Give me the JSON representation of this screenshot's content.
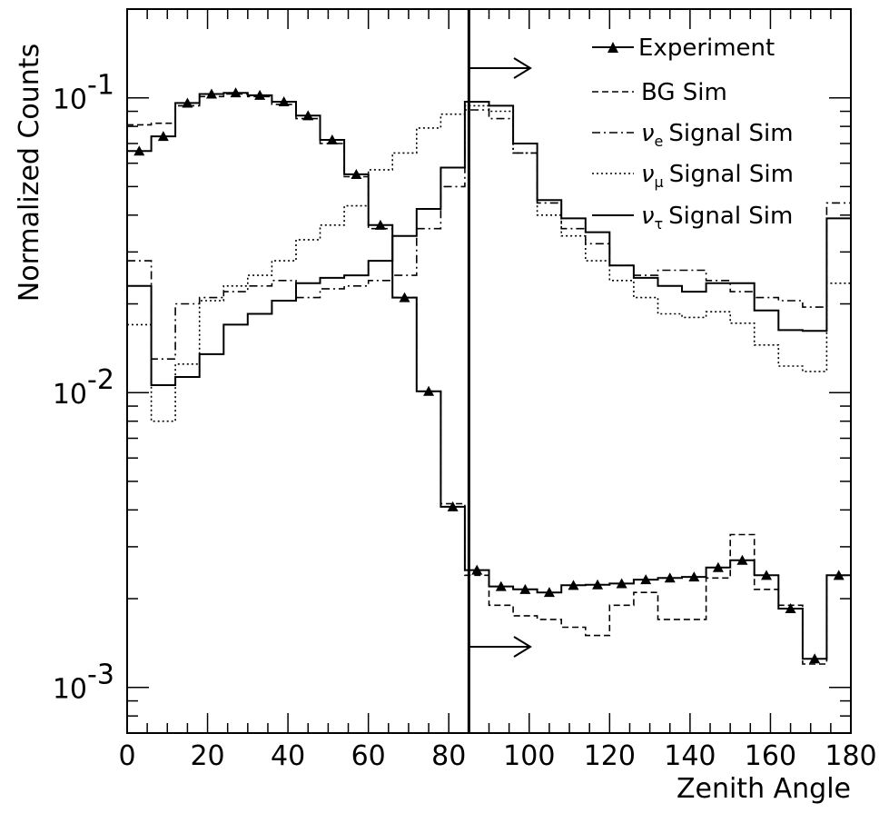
{
  "chart_data": {
    "type": "line",
    "xlabel": "Zenith Angle",
    "ylabel": "Normalized Counts",
    "xlim": [
      0,
      180
    ],
    "ylim": [
      0.0007,
      0.2
    ],
    "log_y": true,
    "x_ticks": [
      "0",
      "20",
      "40",
      "60",
      "80",
      "100",
      "120",
      "140",
      "160",
      "180"
    ],
    "y_tick_labels": [
      {
        "value": 0.1,
        "base": "10",
        "exp": "-1"
      },
      {
        "value": 0.01,
        "base": "10",
        "exp": "-2"
      },
      {
        "value": 0.001,
        "base": "10",
        "exp": "-3"
      }
    ],
    "cut_line_x": 85,
    "bin_edges": [
      0,
      6,
      12,
      18,
      24,
      30,
      36,
      42,
      48,
      54,
      60,
      66,
      72,
      78,
      84,
      90,
      96,
      102,
      108,
      114,
      120,
      126,
      132,
      138,
      144,
      150,
      156,
      162,
      168,
      174,
      180
    ],
    "legend": [
      {
        "label": "Experiment",
        "nu": ""
      },
      {
        "label": "BG Sim",
        "nu": ""
      },
      {
        "label": "Signal Sim",
        "nu": "ν",
        "sub": "e"
      },
      {
        "label": "Signal Sim",
        "nu": "ν",
        "sub": "μ"
      },
      {
        "label": "Signal Sim",
        "nu": "ν",
        "sub": "τ"
      }
    ],
    "series": [
      {
        "name": "Experiment",
        "style": "solid-triangles",
        "values": [
          0.066,
          0.074,
          0.096,
          0.103,
          0.104,
          0.102,
          0.097,
          0.087,
          0.072,
          0.055,
          0.037,
          0.021,
          0.0101,
          0.0041,
          0.0025,
          0.0022,
          0.00215,
          0.0021,
          0.00222,
          0.00223,
          0.00225,
          0.00232,
          0.00235,
          0.00237,
          0.00255,
          0.0027,
          0.0024,
          0.00185,
          0.00125,
          0.0024
        ]
      },
      {
        "name": "BG Sim",
        "style": "dashed",
        "values": [
          0.081,
          0.082,
          0.094,
          0.101,
          0.103,
          0.101,
          0.095,
          0.085,
          0.07,
          0.054,
          0.036,
          0.021,
          0.0101,
          0.0042,
          0.0024,
          0.0019,
          0.00175,
          0.0017,
          0.0016,
          0.0015,
          0.0019,
          0.0021,
          0.0017,
          0.0017,
          0.00235,
          0.0033,
          0.00215,
          0.0019,
          0.0012,
          0.0024
        ]
      },
      {
        "name": "Signal Sim",
        "style": "dash-dot",
        "values": [
          0.028,
          0.013,
          0.02,
          0.021,
          0.022,
          0.023,
          0.024,
          0.021,
          0.0225,
          0.023,
          0.024,
          0.025,
          0.036,
          0.05,
          0.091,
          0.085,
          0.065,
          0.044,
          0.036,
          0.032,
          0.027,
          0.025,
          0.026,
          0.026,
          0.024,
          0.022,
          0.021,
          0.0205,
          0.0195,
          0.044
        ]
      },
      {
        "name": "Signal Sim",
        "style": "dotted",
        "values": [
          0.017,
          0.008,
          0.0125,
          0.0205,
          0.023,
          0.025,
          0.028,
          0.033,
          0.037,
          0.043,
          0.057,
          0.065,
          0.079,
          0.088,
          0.094,
          0.09,
          0.065,
          0.04,
          0.034,
          0.028,
          0.024,
          0.021,
          0.0185,
          0.018,
          0.0188,
          0.0172,
          0.0145,
          0.0123,
          0.0118,
          0.0235
        ]
      },
      {
        "name": "Signal Sim",
        "style": "solid",
        "values": [
          0.023,
          0.0106,
          0.0113,
          0.0135,
          0.017,
          0.0185,
          0.0205,
          0.0235,
          0.0245,
          0.025,
          0.028,
          0.034,
          0.042,
          0.058,
          0.097,
          0.094,
          0.07,
          0.045,
          0.039,
          0.035,
          0.027,
          0.0245,
          0.023,
          0.022,
          0.0235,
          0.0235,
          0.019,
          0.0163,
          0.0162,
          0.039
        ]
      }
    ]
  }
}
